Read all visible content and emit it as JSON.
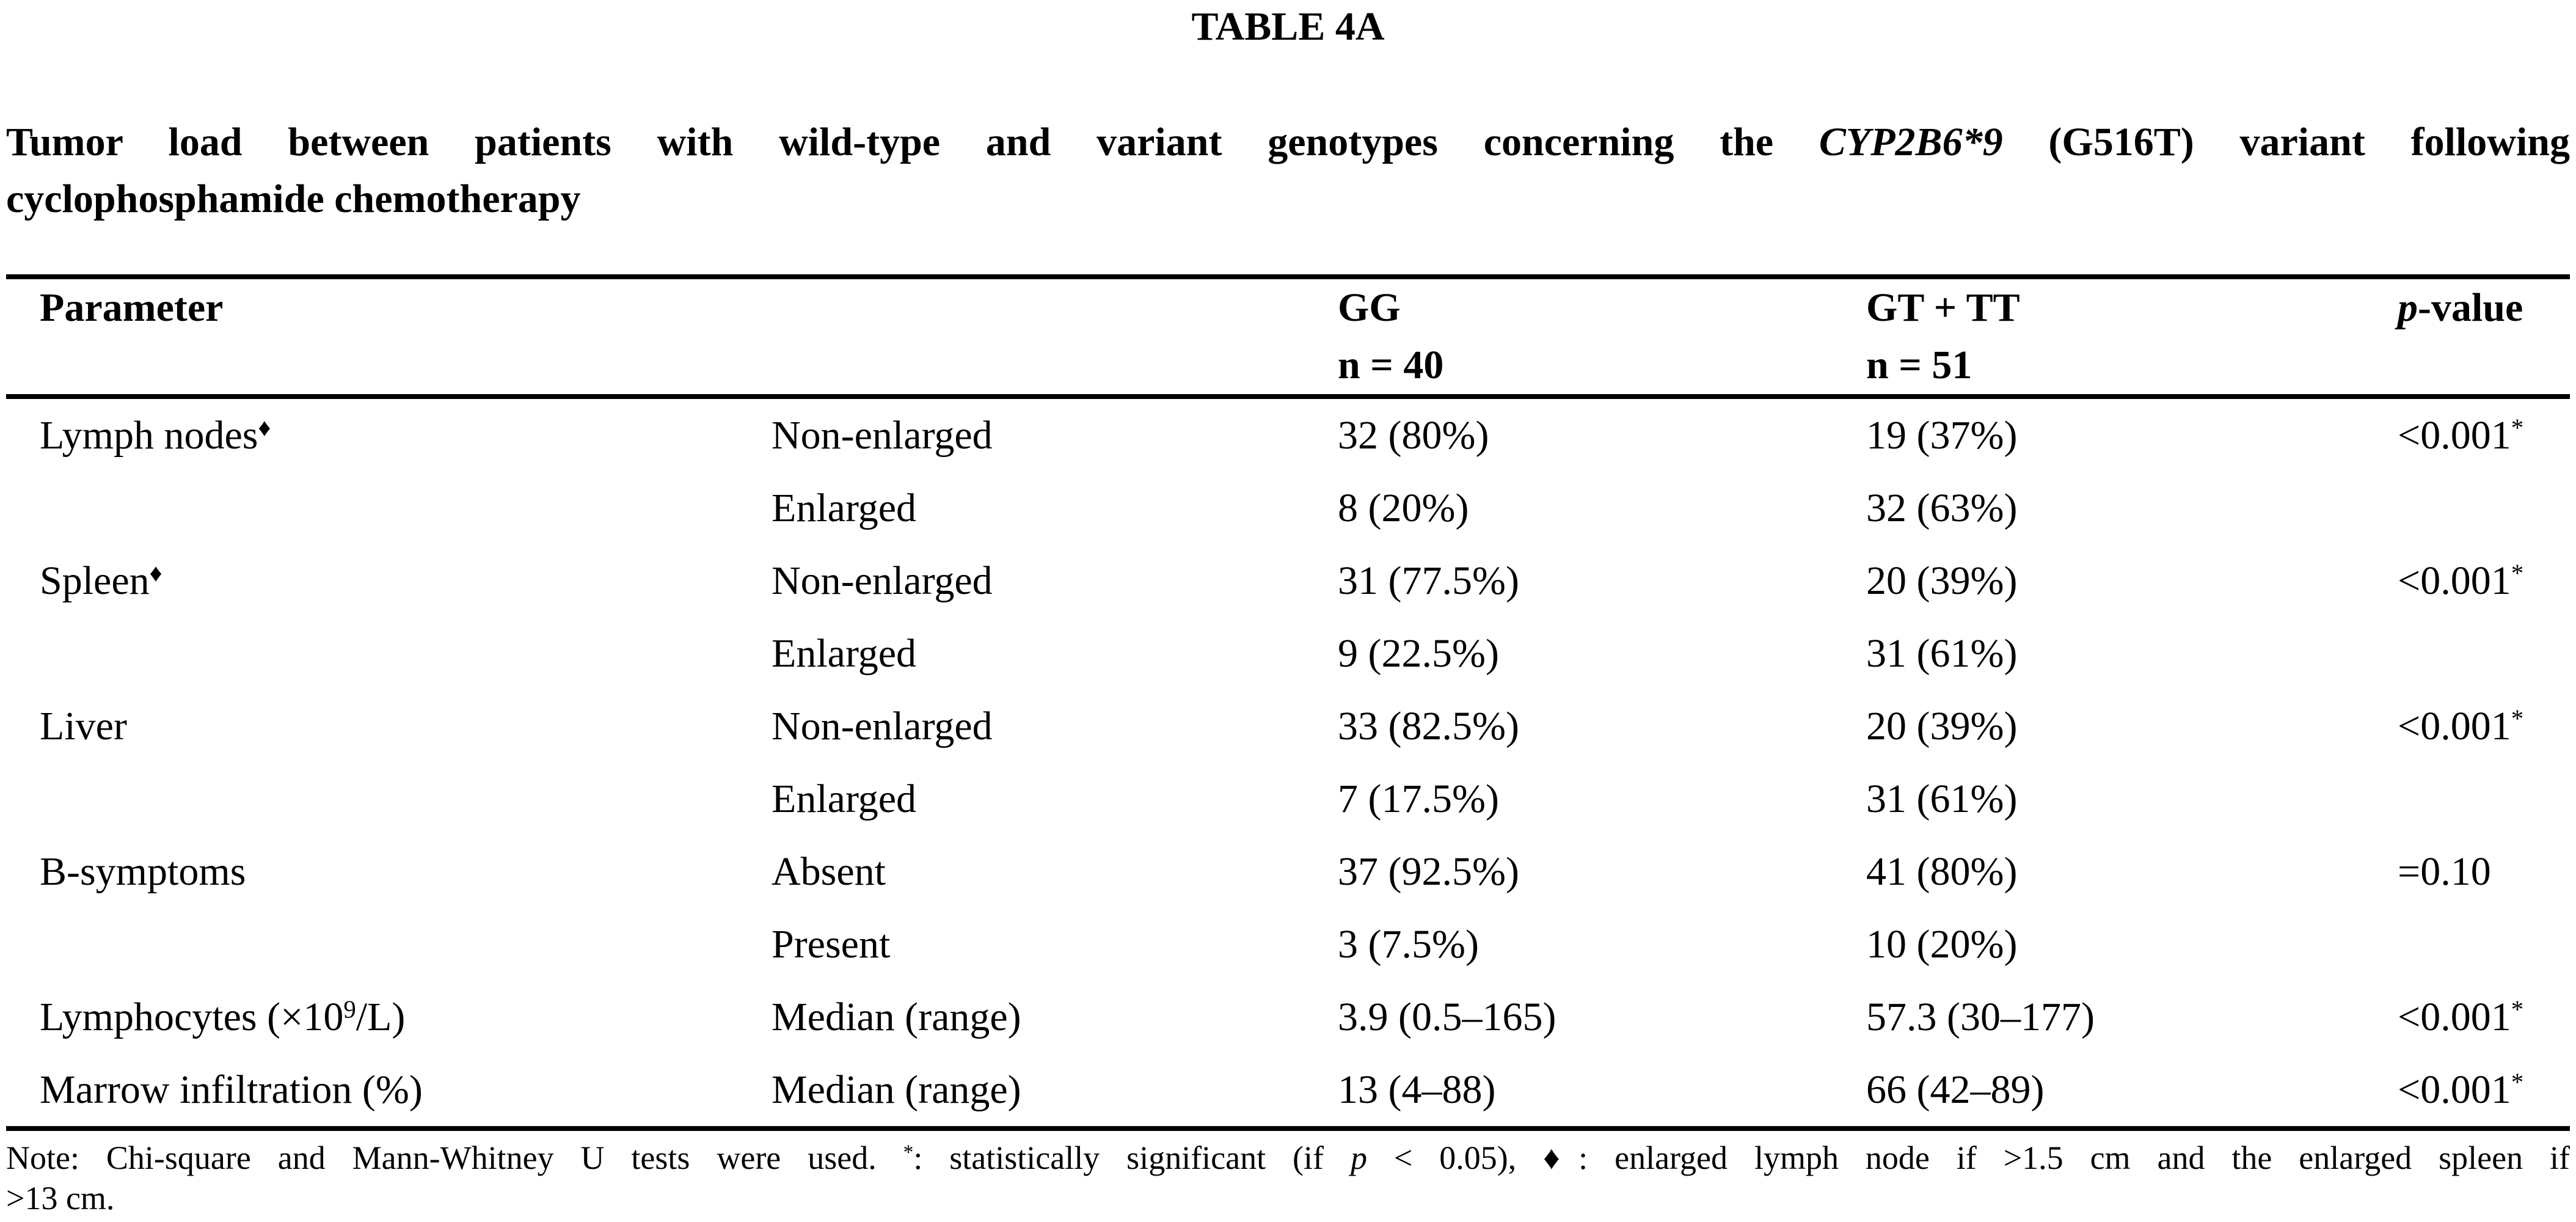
{
  "colors": {
    "text": "#000000",
    "background": "#ffffff"
  },
  "caption": "TABLE 4A",
  "title": {
    "line1_pre": "Tumor load between patients with wild-type and variant genotypes concerning the ",
    "line1_italic": "CYP2B6*9",
    "line1_post": " (G516T) variant following",
    "line2": "cyclophosphamide chemotherapy"
  },
  "header": {
    "parameter": "Parameter",
    "gg_line1": "GG",
    "gg_line2": "n = 40",
    "gt_tt_line1": "GT + TT",
    "gt_tt_line2": "n = 51",
    "p_italic": "p",
    "p_rest": "-value"
  },
  "rows": [
    {
      "param": {
        "pre": "Lymph nodes",
        "sup": "♦",
        "post": ""
      },
      "sub": "Non-enlarged",
      "gg": "32 (80%)",
      "gt_tt": "19 (37%)",
      "p": {
        "text": "<0.001",
        "sup": "*"
      }
    },
    {
      "param": {
        "pre": "",
        "sup": "",
        "post": ""
      },
      "sub": "Enlarged",
      "gg": "8 (20%)",
      "gt_tt": "32 (63%)",
      "p": {
        "text": "",
        "sup": ""
      }
    },
    {
      "param": {
        "pre": "Spleen",
        "sup": "♦",
        "post": ""
      },
      "sub": "Non-enlarged",
      "gg": "31 (77.5%)",
      "gt_tt": "20 (39%)",
      "p": {
        "text": "<0.001",
        "sup": "*"
      }
    },
    {
      "param": {
        "pre": "",
        "sup": "",
        "post": ""
      },
      "sub": "Enlarged",
      "gg": "9 (22.5%)",
      "gt_tt": "31 (61%)",
      "p": {
        "text": "",
        "sup": ""
      }
    },
    {
      "param": {
        "pre": "Liver",
        "sup": "",
        "post": ""
      },
      "sub": "Non-enlarged",
      "gg": "33 (82.5%)",
      "gt_tt": "20 (39%)",
      "p": {
        "text": "<0.001",
        "sup": "*"
      }
    },
    {
      "param": {
        "pre": "",
        "sup": "",
        "post": ""
      },
      "sub": "Enlarged",
      "gg": "7 (17.5%)",
      "gt_tt": "31 (61%)",
      "p": {
        "text": "",
        "sup": ""
      }
    },
    {
      "param": {
        "pre": "B-symptoms",
        "sup": "",
        "post": ""
      },
      "sub": "Absent",
      "gg": "37 (92.5%)",
      "gt_tt": "41 (80%)",
      "p": {
        "text": "=0.10",
        "sup": ""
      }
    },
    {
      "param": {
        "pre": "",
        "sup": "",
        "post": ""
      },
      "sub": "Present",
      "gg": "3 (7.5%)",
      "gt_tt": "10 (20%)",
      "p": {
        "text": "",
        "sup": ""
      }
    },
    {
      "param": {
        "pre": "Lymphocytes (×10",
        "sup": "9",
        "post": "/L)"
      },
      "sub": "Median (range)",
      "gg": "3.9 (0.5–165)",
      "gt_tt": "57.3 (30–177)",
      "p": {
        "text": "<0.001",
        "sup": "*"
      }
    },
    {
      "param": {
        "pre": "Marrow infiltration (%)",
        "sup": "",
        "post": ""
      },
      "sub": "Median (range)",
      "gg": "13 (4–88)",
      "gt_tt": "66 (42–89)",
      "p": {
        "text": "<0.001",
        "sup": "*"
      }
    }
  ],
  "note": {
    "line1_pre": "Note: Chi-square and Mann-Whitney U tests were used. ",
    "line1_star": "*",
    "line1_mid": ": statistically significant (if ",
    "line1_italic": "p",
    "line1_post": " < 0.05), ♦: enlarged lymph node if >1.5 cm and the enlarged spleen if",
    "line2": ">13 cm."
  }
}
